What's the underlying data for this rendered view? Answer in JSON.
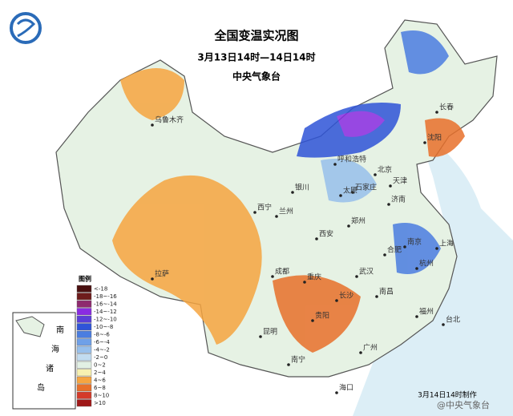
{
  "header": {
    "title": "全国变温实况图",
    "subtitle": "3月13日14时—14日14时",
    "agency": "中央气象台"
  },
  "legend": {
    "title": "图例",
    "items": [
      {
        "label": "<-18",
        "color": "#4a1010"
      },
      {
        "label": "-18~-16",
        "color": "#6e1c1c"
      },
      {
        "label": "-16~-14",
        "color": "#8e2a6e"
      },
      {
        "label": "-14~-12",
        "color": "#8a2be2"
      },
      {
        "label": "-12~-10",
        "color": "#5a3fd8"
      },
      {
        "label": "-10~-8",
        "color": "#2f54d8"
      },
      {
        "label": "-8~-6",
        "color": "#4a7de0"
      },
      {
        "label": "-6~-4",
        "color": "#6fa0e8"
      },
      {
        "label": "-4~-2",
        "color": "#98c0ec"
      },
      {
        "label": "-2~0",
        "color": "#c2dcf0"
      },
      {
        "label": "0~2",
        "color": "#e2f0e4"
      },
      {
        "label": "2~4",
        "color": "#f7f1b0"
      },
      {
        "label": "4~6",
        "color": "#f6a540"
      },
      {
        "label": "6~8",
        "color": "#e8702a"
      },
      {
        "label": "8~10",
        "color": "#d43a2a"
      },
      {
        "label": ">10",
        "color": "#a01818"
      }
    ]
  },
  "cities": [
    "乌鲁木齐",
    "长春",
    "沈阳",
    "呼和浩特",
    "北京",
    "天津",
    "石家庄",
    "太原",
    "济南",
    "银川",
    "兰州",
    "西宁",
    "郑州",
    "西安",
    "南京",
    "合肥",
    "上海",
    "杭州",
    "武汉",
    "成都",
    "重庆",
    "长沙",
    "南昌",
    "福州",
    "台北",
    "贵阳",
    "昆明",
    "南宁",
    "广州",
    "海口",
    "拉萨"
  ],
  "inset": {
    "chars": [
      "南",
      "海",
      "诸",
      "岛"
    ]
  },
  "footer": "3月14日14时制作",
  "watermark": "@中央气象台"
}
